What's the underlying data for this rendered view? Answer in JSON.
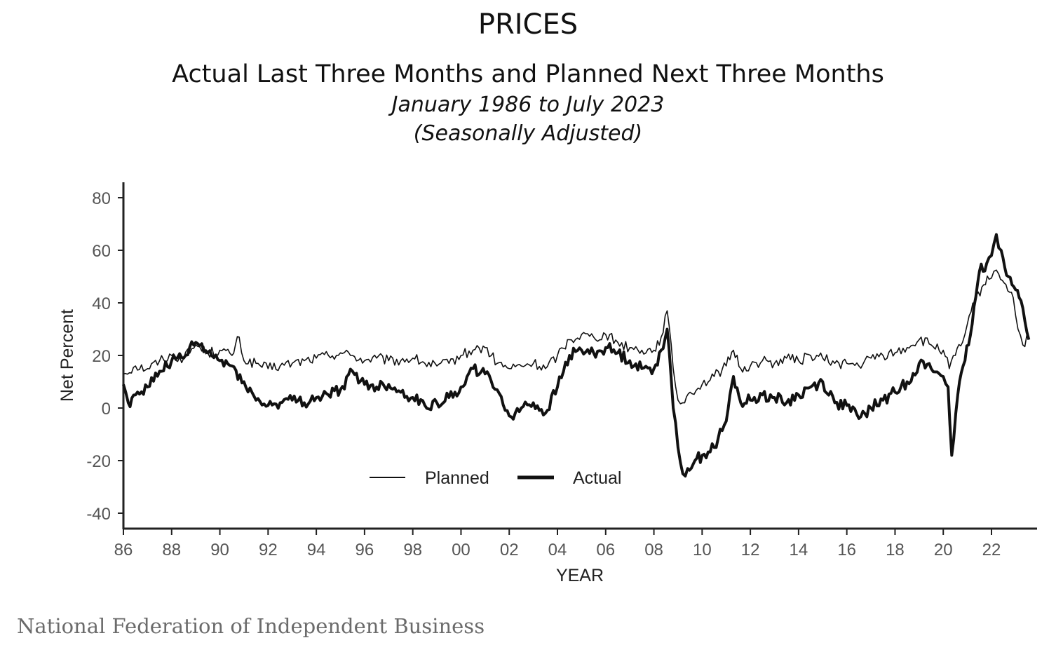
{
  "chart_data": {
    "type": "line",
    "title": "PRICES",
    "subtitle": "Actual Last Three Months and Planned Next Three Months",
    "date_range": "January 1986 to July 2023",
    "adjustment": "(Seasonally Adjusted)",
    "xlabel": "YEAR",
    "ylabel": "Net Percent",
    "xlim": [
      1986,
      2023.6
    ],
    "ylim": [
      -45,
      85
    ],
    "x_ticks": [
      1986,
      1988,
      1990,
      1992,
      1994,
      1996,
      1998,
      2000,
      2002,
      2004,
      2006,
      2008,
      2010,
      2012,
      2014,
      2016,
      2018,
      2020,
      2022
    ],
    "x_tick_labels": [
      "86",
      "88",
      "90",
      "92",
      "94",
      "96",
      "98",
      "00",
      "02",
      "04",
      "06",
      "08",
      "10",
      "12",
      "14",
      "16",
      "18",
      "20",
      "22"
    ],
    "y_ticks": [
      -40,
      -20,
      0,
      20,
      40,
      60,
      80
    ],
    "y_tick_labels": [
      "-40",
      "-20",
      "0",
      "20",
      "40",
      "60",
      "80"
    ],
    "grid": false,
    "legend_position": "bottom-center",
    "series": [
      {
        "name": "Planned",
        "color": "#111111",
        "line_style": "thin",
        "x": [
          1986.0,
          1986.5,
          1987.0,
          1987.5,
          1988.0,
          1988.5,
          1989.0,
          1989.5,
          1990.0,
          1990.5,
          1990.8,
          1991.0,
          1991.5,
          1992.0,
          1992.5,
          1993.0,
          1993.5,
          1994.0,
          1994.5,
          1995.0,
          1995.5,
          1996.0,
          1996.5,
          1997.0,
          1997.5,
          1998.0,
          1998.5,
          1999.0,
          1999.5,
          2000.0,
          2000.5,
          2001.0,
          2001.5,
          2002.0,
          2002.5,
          2003.0,
          2003.5,
          2004.0,
          2004.5,
          2005.0,
          2005.5,
          2006.0,
          2006.5,
          2007.0,
          2007.5,
          2008.0,
          2008.3,
          2008.55,
          2008.8,
          2009.0,
          2009.2,
          2009.5,
          2010.0,
          2010.5,
          2011.0,
          2011.3,
          2011.6,
          2012.0,
          2012.5,
          2013.0,
          2013.5,
          2014.0,
          2014.5,
          2015.0,
          2015.5,
          2016.0,
          2016.5,
          2017.0,
          2017.5,
          2018.0,
          2018.5,
          2019.0,
          2019.5,
          2020.0,
          2020.25,
          2020.5,
          2020.8,
          2021.0,
          2021.3,
          2021.6,
          2021.9,
          2022.1,
          2022.3,
          2022.6,
          2022.9,
          2023.1,
          2023.3,
          2023.55
        ],
        "y": [
          13,
          16,
          15,
          18,
          20,
          19,
          24,
          21,
          22,
          20,
          27,
          18,
          17,
          15,
          16,
          17,
          18,
          19,
          20,
          21,
          20,
          18,
          19,
          18,
          18,
          19,
          17,
          16,
          17,
          20,
          22,
          23,
          17,
          15,
          16,
          17,
          15,
          20,
          26,
          28,
          27,
          28,
          25,
          23,
          22,
          22,
          27,
          37,
          15,
          3,
          2,
          6,
          9,
          12,
          16,
          22,
          15,
          16,
          18,
          17,
          19,
          18,
          20,
          19,
          17,
          17,
          16,
          19,
          20,
          21,
          23,
          26,
          24,
          22,
          15,
          20,
          25,
          32,
          40,
          46,
          49,
          52,
          51,
          47,
          42,
          30,
          24,
          27
        ]
      },
      {
        "name": "Actual",
        "color": "#111111",
        "line_style": "thick",
        "x": [
          1986.0,
          1986.2,
          1986.5,
          1987.0,
          1987.5,
          1988.0,
          1988.5,
          1989.0,
          1989.5,
          1990.0,
          1990.5,
          1991.0,
          1991.5,
          1992.0,
          1992.5,
          1993.0,
          1993.5,
          1994.0,
          1994.5,
          1995.0,
          1995.5,
          1996.0,
          1996.5,
          1997.0,
          1997.5,
          1998.0,
          1998.5,
          1999.0,
          1999.5,
          2000.0,
          2000.5,
          2001.0,
          2001.5,
          2002.0,
          2002.5,
          2003.0,
          2003.5,
          2004.0,
          2004.5,
          2005.0,
          2005.5,
          2006.0,
          2006.5,
          2007.0,
          2007.5,
          2008.0,
          2008.3,
          2008.55,
          2008.8,
          2009.0,
          2009.2,
          2009.4,
          2009.7,
          2010.0,
          2010.5,
          2011.0,
          2011.3,
          2011.6,
          2012.0,
          2012.5,
          2013.0,
          2013.5,
          2014.0,
          2014.5,
          2015.0,
          2015.5,
          2016.0,
          2016.5,
          2017.0,
          2017.5,
          2018.0,
          2018.5,
          2019.0,
          2019.5,
          2020.0,
          2020.2,
          2020.35,
          2020.6,
          2020.9,
          2021.2,
          2021.5,
          2021.8,
          2022.0,
          2022.2,
          2022.4,
          2022.7,
          2023.0,
          2023.3,
          2023.55
        ],
        "y": [
          9,
          2,
          5,
          8,
          14,
          18,
          19,
          25,
          21,
          18,
          16,
          10,
          3,
          1,
          2,
          3,
          2,
          4,
          5,
          7,
          14,
          9,
          8,
          9,
          6,
          4,
          1,
          2,
          4,
          8,
          15,
          13,
          7,
          -3,
          0,
          2,
          -2,
          8,
          20,
          22,
          21,
          23,
          21,
          18,
          15,
          15,
          22,
          30,
          0,
          -15,
          -25,
          -23,
          -20,
          -18,
          -15,
          -5,
          12,
          2,
          3,
          5,
          4,
          2,
          5,
          8,
          10,
          2,
          1,
          -4,
          0,
          3,
          6,
          10,
          17,
          15,
          12,
          8,
          -18,
          5,
          18,
          32,
          52,
          55,
          58,
          66,
          60,
          50,
          45,
          38,
          26
        ]
      }
    ]
  },
  "source": "National Federation of Independent Business"
}
